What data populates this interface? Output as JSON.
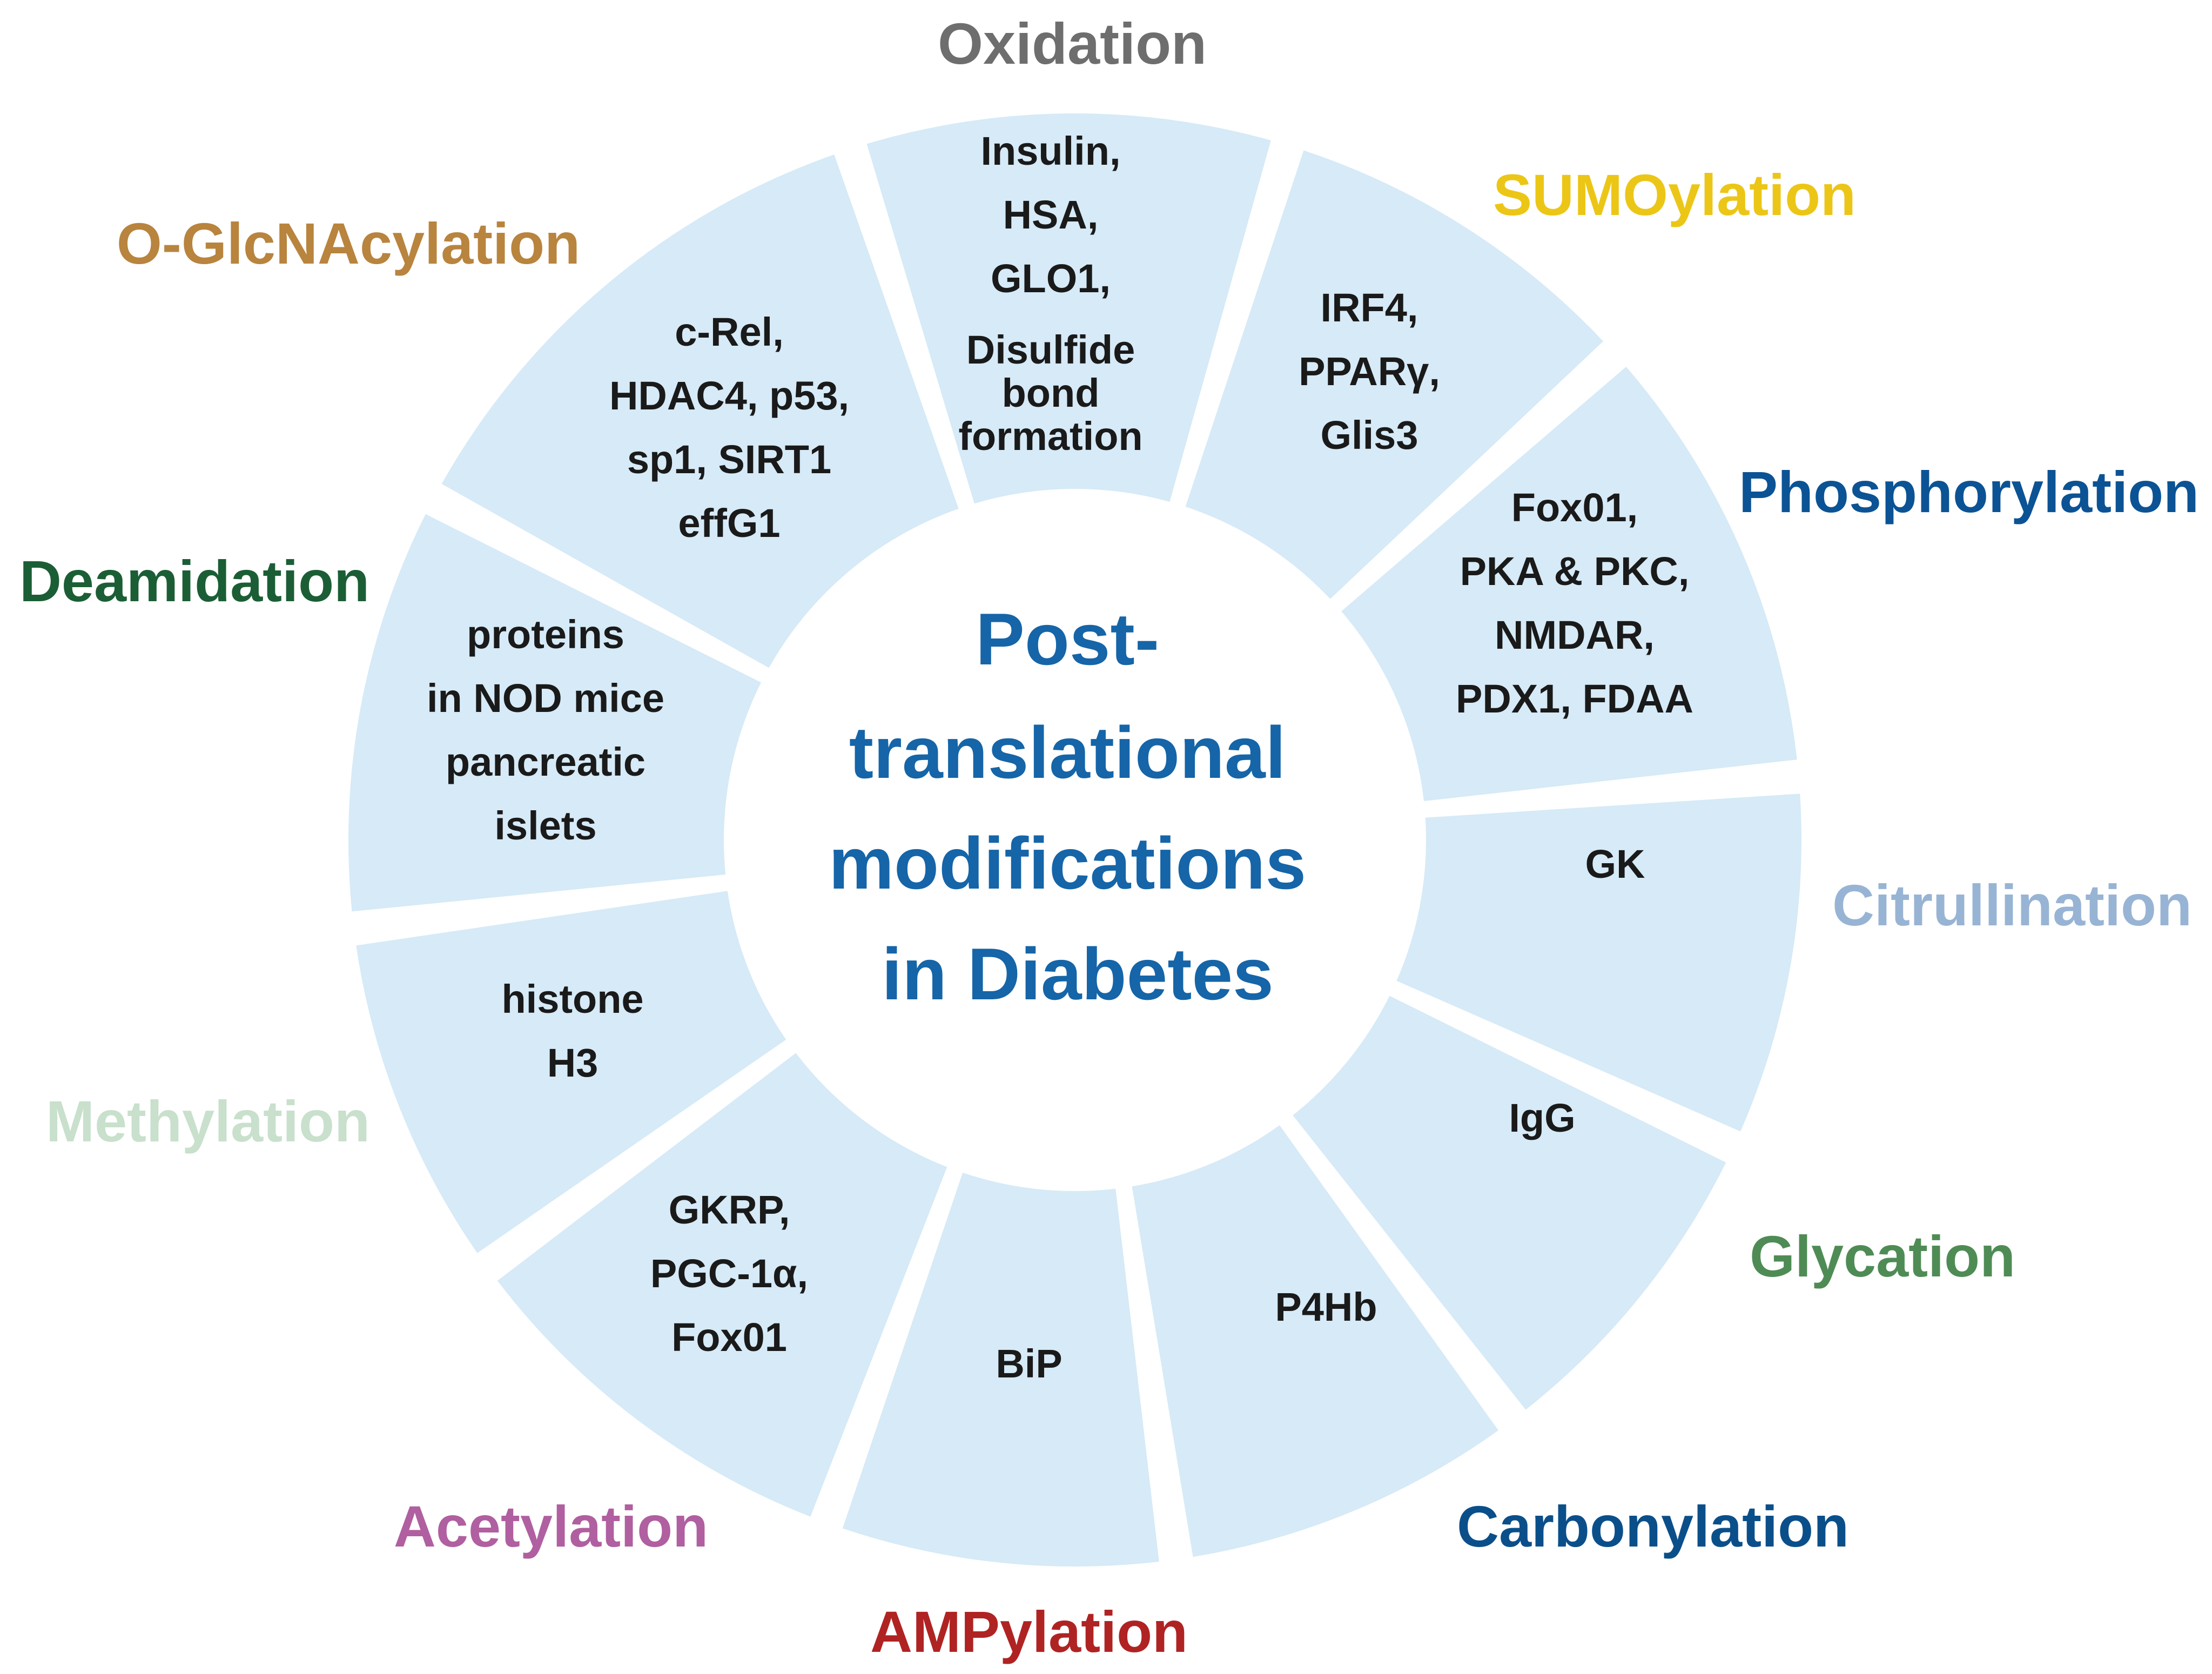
{
  "center": {
    "lines": [
      "Post-",
      "translational",
      "modifications",
      "in Diabetes"
    ],
    "color": "#1565a8"
  },
  "segment_fill": "#d6eaf7",
  "modifications": [
    {
      "name": "Oxidation",
      "color": "#6e6e6e",
      "targets": [
        "Insulin,",
        "HSA,",
        "GLO1,",
        "Disulfide",
        "bond",
        "formation"
      ]
    },
    {
      "name": "SUMOylation",
      "color": "#ecc616",
      "targets": [
        "IRF4,",
        "PPARγ,",
        "Glis3"
      ]
    },
    {
      "name": "Phosphorylation",
      "color": "#0b5394",
      "targets": [
        "Fox01,",
        "PKA & PKC,",
        "NMDAR,",
        "PDX1, FDAA"
      ]
    },
    {
      "name": "Citrullination",
      "color": "#98b4d4",
      "targets": [
        "GK"
      ]
    },
    {
      "name": "Glycation",
      "color": "#4f8c55",
      "targets": [
        "IgG"
      ]
    },
    {
      "name": "Carbonylation",
      "color": "#0b4f8a",
      "targets": [
        "P4Hb"
      ]
    },
    {
      "name": "AMPylation",
      "color": "#b02323",
      "targets": [
        "BiP"
      ]
    },
    {
      "name": "Acetylation",
      "color": "#b05fa0",
      "targets": [
        "GKRP,",
        "PGC-1α,",
        "Fox01"
      ]
    },
    {
      "name": "Methylation",
      "color": "#c8e0cc",
      "targets": [
        "histone",
        "H3"
      ]
    },
    {
      "name": "Deamidation",
      "color": "#1b5e35",
      "targets": [
        "proteins",
        "in NOD mice",
        "pancreatic",
        "islets"
      ]
    },
    {
      "name": "O-GlcNAcylation",
      "color": "#b8843e",
      "targets": [
        "c-Rel,",
        "HDAC4, p53,",
        "sp1, SIRT1",
        "effG1"
      ]
    }
  ]
}
